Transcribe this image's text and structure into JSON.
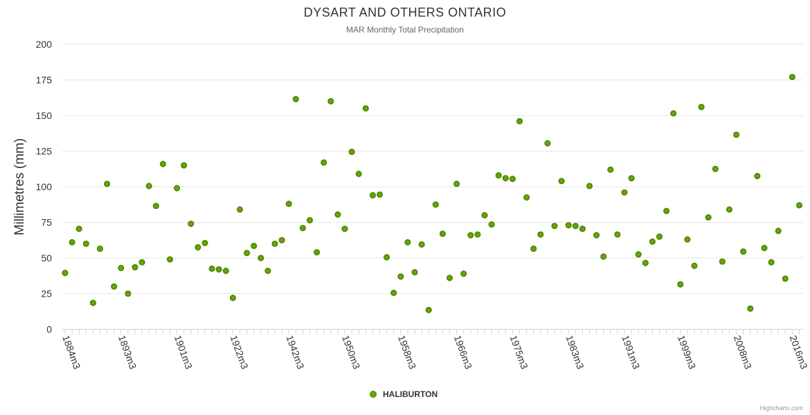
{
  "chart_data": {
    "type": "scatter",
    "title": "DYSART AND OTHERS ONTARIO",
    "subtitle": "MAR Monthly Total Precipitation",
    "ylabel": "Millimetres (mm)",
    "xlabel": "",
    "ylim": [
      0,
      200
    ],
    "yticks": [
      0,
      25,
      50,
      75,
      100,
      125,
      150,
      175,
      200
    ],
    "xtick_labels": [
      {
        "index": 0,
        "label": "1884m3"
      },
      {
        "index": 8,
        "label": "1893m3"
      },
      {
        "index": 16,
        "label": "1901m3"
      },
      {
        "index": 24,
        "label": "1922m3"
      },
      {
        "index": 32,
        "label": "1942m3"
      },
      {
        "index": 40,
        "label": "1950m3"
      },
      {
        "index": 48,
        "label": "1958m3"
      },
      {
        "index": 56,
        "label": "1966m3"
      },
      {
        "index": 64,
        "label": "1975m3"
      },
      {
        "index": 72,
        "label": "1983m3"
      },
      {
        "index": 80,
        "label": "1991m3"
      },
      {
        "index": 88,
        "label": "1999m3"
      },
      {
        "index": 96,
        "label": "2008m3"
      },
      {
        "index": 104,
        "label": "2016m3"
      }
    ],
    "grid": true,
    "legend_position": "bottom-center",
    "series": [
      {
        "name": "HALIBURTON",
        "color": "#66a600",
        "values": [
          39.5,
          61,
          70.5,
          60,
          18.5,
          56.5,
          102,
          30,
          43,
          25,
          43.5,
          47,
          100.5,
          86.5,
          116,
          49,
          99,
          115,
          74,
          57.5,
          60.5,
          42.5,
          42,
          41,
          22,
          84,
          53.5,
          58.5,
          50,
          41,
          60,
          62.5,
          88,
          161.5,
          71,
          76.5,
          54,
          117,
          160,
          80.5,
          70.5,
          124.5,
          109,
          155,
          94,
          94.5,
          50.5,
          25.5,
          37,
          61,
          40,
          59.5,
          13.5,
          87.5,
          67,
          36,
          102,
          39,
          66,
          66.5,
          80,
          73.5,
          108,
          106,
          105.5,
          146,
          92.5,
          56.5,
          66.5,
          130.5,
          72.5,
          104,
          73,
          72.5,
          70.5,
          100.5,
          66,
          51,
          112,
          66.5,
          96,
          106,
          52.5,
          46.5,
          61.5,
          65,
          83,
          151.5,
          31.5,
          63,
          44.5,
          156,
          78.5,
          112.5,
          47.5,
          84,
          136.5,
          54.5,
          14.5,
          107.5,
          57,
          47,
          69,
          35.5,
          177,
          87
        ]
      }
    ]
  },
  "legend": {
    "label": "HALIBURTON"
  },
  "credits": "Highcharts.com"
}
